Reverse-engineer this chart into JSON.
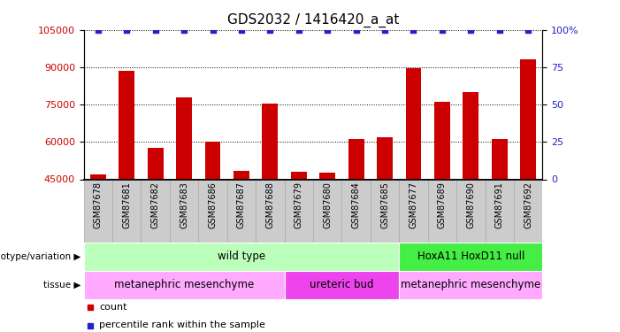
{
  "title": "GDS2032 / 1416420_a_at",
  "samples": [
    "GSM87678",
    "GSM87681",
    "GSM87682",
    "GSM87683",
    "GSM87686",
    "GSM87687",
    "GSM87688",
    "GSM87679",
    "GSM87680",
    "GSM87684",
    "GSM87685",
    "GSM87677",
    "GSM87689",
    "GSM87690",
    "GSM87691",
    "GSM87692"
  ],
  "counts": [
    47000,
    88500,
    57500,
    78000,
    60000,
    48500,
    75500,
    48000,
    47500,
    61000,
    62000,
    89500,
    76000,
    80000,
    61000,
    93000
  ],
  "ylim_left": [
    45000,
    105000
  ],
  "ylim_right": [
    0,
    100
  ],
  "yticks_left": [
    45000,
    60000,
    75000,
    90000,
    105000
  ],
  "yticks_right": [
    0,
    25,
    50,
    75,
    100
  ],
  "bar_color": "#cc0000",
  "dot_color": "#2222cc",
  "bar_width": 0.55,
  "genotype_groups": [
    {
      "label": "wild type",
      "start": 0,
      "end": 11,
      "color": "#bbffbb"
    },
    {
      "label": "HoxA11 HoxD11 null",
      "start": 11,
      "end": 16,
      "color": "#44ee44"
    }
  ],
  "tissue_groups": [
    {
      "label": "metanephric mesenchyme",
      "start": 0,
      "end": 7,
      "color": "#ffaaff"
    },
    {
      "label": "ureteric bud",
      "start": 7,
      "end": 11,
      "color": "#ee44ee"
    },
    {
      "label": "metanephric mesenchyme",
      "start": 11,
      "end": 16,
      "color": "#ffaaff"
    }
  ],
  "legend_items": [
    {
      "label": "count",
      "color": "#cc0000"
    },
    {
      "label": "percentile rank within the sample",
      "color": "#2222cc"
    }
  ],
  "tick_label_color_left": "#cc0000",
  "tick_label_color_right": "#2222cc",
  "cell_bg_color": "#cccccc",
  "cell_edge_color": "#aaaaaa"
}
